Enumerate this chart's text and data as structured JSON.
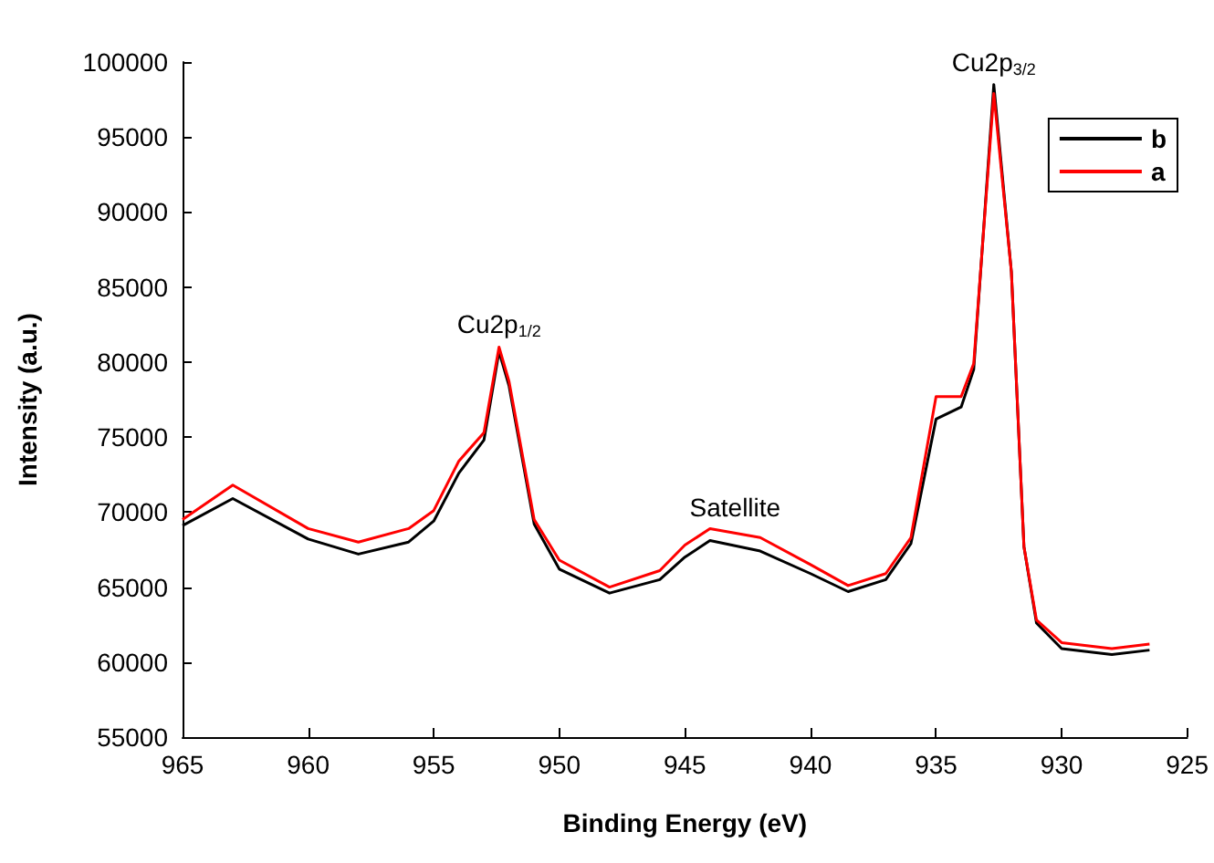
{
  "chart_data": {
    "type": "line",
    "xlabel": "Binding Energy (eV)",
    "ylabel": "Intensity (a.u.)",
    "xlim": [
      965,
      925
    ],
    "xticks": [
      965,
      960,
      955,
      950,
      945,
      940,
      935,
      930,
      925
    ],
    "ylim": [
      55000,
      100000
    ],
    "yticks": [
      55000,
      60000,
      65000,
      70000,
      75000,
      80000,
      85000,
      90000,
      95000,
      100000
    ],
    "legend": "top right",
    "grid": false,
    "marker": "none",
    "line_style": "solid",
    "series": [
      {
        "name": "b",
        "color": "#000000",
        "x": [
          965,
          963,
          960,
          958,
          956,
          955,
          954,
          953,
          952.4,
          952,
          951,
          950,
          948,
          946,
          945,
          944,
          942,
          940,
          938.5,
          937,
          936,
          935,
          934,
          933.5,
          932.7,
          932,
          931.5,
          931,
          930,
          928,
          926.5
        ],
        "values": [
          69100,
          70900,
          68200,
          67200,
          68000,
          69400,
          72600,
          74800,
          80700,
          78400,
          69200,
          66200,
          64600,
          65500,
          67000,
          68100,
          67400,
          65900,
          64700,
          65500,
          67900,
          76200,
          77000,
          79500,
          98500,
          86000,
          67700,
          62600,
          60900,
          60500,
          60800
        ]
      },
      {
        "name": "a",
        "color": "#ff0000",
        "x": [
          965,
          963,
          960,
          958,
          956,
          955,
          954,
          953,
          952.4,
          952,
          951,
          950,
          948,
          946,
          945,
          944,
          942,
          940,
          938.5,
          937,
          936,
          935,
          934,
          933.5,
          932.7,
          932,
          931.5,
          931,
          930,
          928,
          926.5
        ],
        "values": [
          69500,
          71800,
          68900,
          68000,
          68900,
          70100,
          73400,
          75300,
          81000,
          78700,
          69500,
          66800,
          65000,
          66100,
          67800,
          68900,
          68300,
          66500,
          65100,
          65900,
          68300,
          77700,
          77700,
          79900,
          97900,
          86000,
          67700,
          62800,
          61300,
          60900,
          61200
        ]
      }
    ],
    "annotations": [
      {
        "text": "Cu2p$_{1/2}$",
        "x": 952.4,
        "y": 81000
      },
      {
        "text": "Satellite",
        "x": 943,
        "y": 69000
      },
      {
        "text": "Cu2p$_{3/2}$",
        "x": 932.7,
        "y": 98500
      }
    ]
  }
}
